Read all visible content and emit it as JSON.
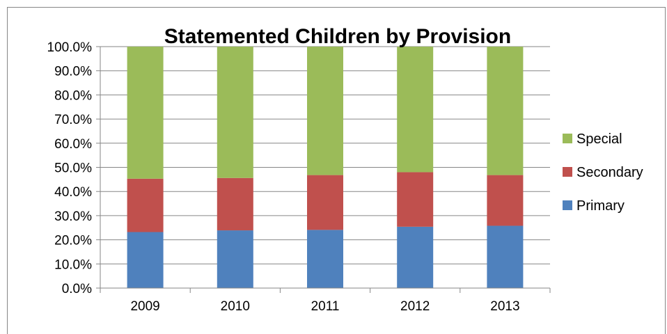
{
  "chart_data": {
    "type": "bar",
    "stacked": true,
    "title": "Statemented Children by Provision",
    "xlabel": "",
    "ylabel": "",
    "categories": [
      "2009",
      "2010",
      "2011",
      "2012",
      "2013"
    ],
    "ylim": [
      0,
      100
    ],
    "yticks": [
      0,
      10,
      20,
      30,
      40,
      50,
      60,
      70,
      80,
      90,
      100
    ],
    "ytick_labels": [
      "0.0%",
      "10.0%",
      "20.0%",
      "30.0%",
      "40.0%",
      "50.0%",
      "60.0%",
      "70.0%",
      "80.0%",
      "90.0%",
      "100.0%"
    ],
    "grid": true,
    "legend_position": "right",
    "series": [
      {
        "name": "Primary",
        "color": "#4f81bd",
        "values": [
          23.2,
          23.9,
          24.1,
          25.4,
          25.8
        ]
      },
      {
        "name": "Secondary",
        "color": "#c0504d",
        "values": [
          22.1,
          21.7,
          22.7,
          22.6,
          21.0
        ]
      },
      {
        "name": "Special",
        "color": "#9bbb59",
        "values": [
          54.7,
          54.4,
          53.2,
          52.0,
          53.2
        ]
      }
    ],
    "legend_order": [
      "Special",
      "Secondary",
      "Primary"
    ]
  }
}
